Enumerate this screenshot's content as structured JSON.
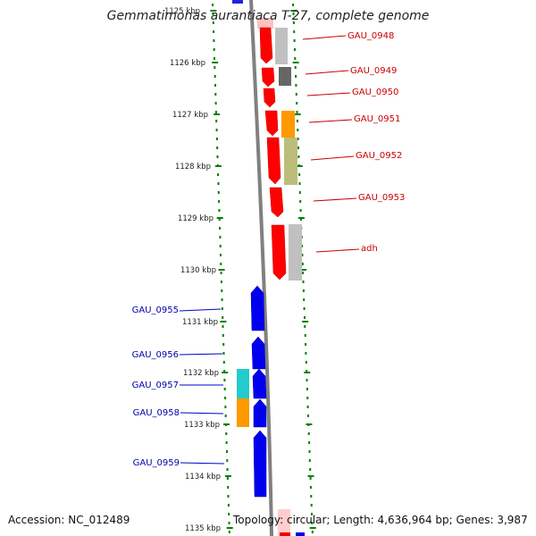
{
  "title": "Gemmatimonas aurantiaca T-27, complete genome",
  "footer": {
    "accession_label": "Accession:",
    "accession": "NC_012489",
    "topology_label": "Topology:",
    "topology": "circular;",
    "length_label": "Length:",
    "length": "4,636,964 bp;",
    "genes_label": "Genes:",
    "genes": "3,987"
  },
  "colors": {
    "forward_genes": "#ff0000",
    "reverse_genes": "#0000ff",
    "forward_label": "#cc0000",
    "reverse_label": "#0000aa",
    "backbone": "#808080",
    "ticks": "#008000"
  },
  "scale": {
    "unit": "kbp",
    "ticks": [
      "1125 kbp",
      "1126 kbp",
      "1127 kbp",
      "1128 kbp",
      "1129 kbp",
      "1130 kbp",
      "1131 kbp",
      "1132 kbp",
      "1133 kbp",
      "1134 kbp",
      "1135 kbp"
    ]
  },
  "genes": {
    "forward_strand": [
      {
        "name": "GAU_0948"
      },
      {
        "name": "GAU_0949"
      },
      {
        "name": "GAU_0950"
      },
      {
        "name": "GAU_0951"
      },
      {
        "name": "GAU_0952"
      },
      {
        "name": "GAU_0953"
      },
      {
        "name": "adh"
      }
    ],
    "reverse_strand": [
      {
        "name": "GAU_0955"
      },
      {
        "name": "GAU_0956"
      },
      {
        "name": "GAU_0957"
      },
      {
        "name": "GAU_0958"
      },
      {
        "name": "GAU_0959"
      }
    ]
  }
}
